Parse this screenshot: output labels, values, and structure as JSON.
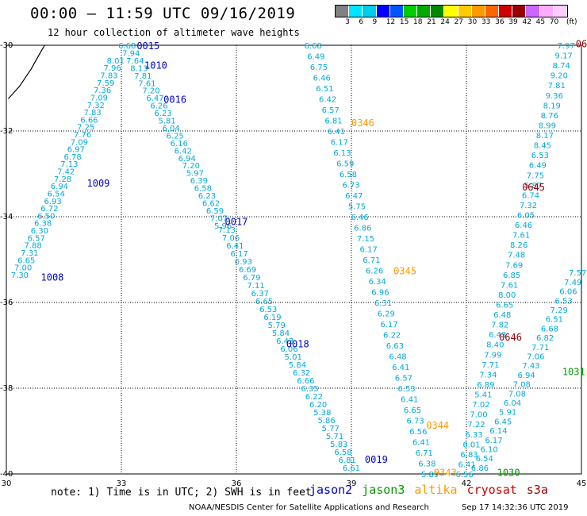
{
  "header": {
    "title": "00:00 – 11:59 UTC 09/16/2019",
    "subtitle": "12 hour collection of altimeter wave heights"
  },
  "colorbar": {
    "unit": "(ft)",
    "labels": [
      "3",
      "6",
      "9",
      "12",
      "15",
      "18",
      "21",
      "24",
      "27",
      "30",
      "33",
      "36",
      "39",
      "42",
      "45",
      "70"
    ],
    "colors": [
      "#808080",
      "#00e5ff",
      "#00ccee",
      "#0000ff",
      "#0055ff",
      "#00cc00",
      "#00aa00",
      "#008800",
      "#ffff00",
      "#ffcc00",
      "#ff9900",
      "#ff6600",
      "#cc0000",
      "#990000",
      "#cc66ff",
      "#ffaaff",
      "#ffccff"
    ]
  },
  "footer": {
    "note": "note:  1) Time is in UTC;  2) SWH is in feet",
    "credit": "NOAA/NESDIS Center for Satellite Applications and Research",
    "timestamp": "Sep 17 14:32:36 UTC 2019"
  },
  "legend": [
    {
      "name": "jason2",
      "color": "#0000cc"
    },
    {
      "name": "jason3",
      "color": "#009900"
    },
    {
      "name": "altika",
      "color": "#ff9900"
    },
    {
      "name": "cryosat",
      "color": "#cc0000"
    },
    {
      "name": "s3a",
      "color": "#990000"
    }
  ],
  "chart_data": {
    "type": "scatter",
    "xlim": [
      30,
      45
    ],
    "ylim": [
      -40,
      -30
    ],
    "xticks": [
      30,
      33,
      36,
      39,
      42,
      45
    ],
    "yticks": [
      -30,
      -32,
      -34,
      -36,
      -38,
      -40
    ],
    "grid": true,
    "satellite_colors": {
      "jason2": "#0000cc",
      "jason3": "#009900",
      "altika": "#ff9900",
      "cryosat": "#cc0000",
      "s3a": "#990000",
      "other": "#00aadd"
    },
    "time_labels": [
      {
        "text": "0015",
        "x": 33.4,
        "y": -30.0,
        "sat": "jason2"
      },
      {
        "text": "1010",
        "x": 33.6,
        "y": -30.45,
        "sat": "jason2"
      },
      {
        "text": "0016",
        "x": 34.1,
        "y": -31.25,
        "sat": "jason2"
      },
      {
        "text": "1009",
        "x": 32.1,
        "y": -33.2,
        "sat": "jason2"
      },
      {
        "text": "1008",
        "x": 30.9,
        "y": -35.4,
        "sat": "jason2"
      },
      {
        "text": "0017",
        "x": 35.7,
        "y": -34.1,
        "sat": "jason2"
      },
      {
        "text": "0018",
        "x": 37.3,
        "y": -36.95,
        "sat": "jason2"
      },
      {
        "text": "0019",
        "x": 39.35,
        "y": -39.65,
        "sat": "jason2"
      },
      {
        "text": "0346",
        "x": 39.0,
        "y": -31.8,
        "sat": "altika"
      },
      {
        "text": "0345",
        "x": 40.1,
        "y": -35.25,
        "sat": "altika"
      },
      {
        "text": "0344",
        "x": 40.95,
        "y": -38.85,
        "sat": "altika"
      },
      {
        "text": "0343",
        "x": 41.15,
        "y": -39.95,
        "sat": "altika"
      },
      {
        "text": "0645",
        "x": 43.45,
        "y": -33.3,
        "sat": "s3a"
      },
      {
        "text": "0646",
        "x": 42.85,
        "y": -36.8,
        "sat": "s3a"
      },
      {
        "text": "06",
        "x": 44.85,
        "y": -29.95,
        "sat": "s3a"
      },
      {
        "text": "1031",
        "x": 44.5,
        "y": -37.6,
        "sat": "jason3"
      },
      {
        "text": "1030",
        "x": 42.8,
        "y": -39.95,
        "sat": "jason3"
      }
    ],
    "tracks": [
      {
        "name": "track-1008-1009",
        "sat": "other",
        "start": [
          30.35,
          -35.35
        ],
        "end": [
          32.85,
          -30.35
        ],
        "values": [
          "7.30",
          "7.00",
          "6.65",
          "7.31",
          "7.88",
          "6.57",
          "6.30",
          "6.38",
          "6.50",
          "6.72",
          "6.93",
          "6.54",
          "6.94",
          "7.28",
          "7.42",
          "7.13",
          "6.78",
          "6.97",
          "7.09",
          "7.76",
          "7.25",
          "6.66",
          "7.83",
          "7.32",
          "7.09",
          "7.36",
          "7.59",
          "7.83",
          "7.96",
          "8.01"
        ]
      },
      {
        "name": "track-0015-0017",
        "sat": "other",
        "start": [
          33.15,
          -30.0
        ],
        "end": [
          35.65,
          -34.2
        ],
        "values": [
          "6.68",
          "7.94",
          "7.64",
          "8.13",
          "7.81",
          "7.61",
          "7.20",
          "6.47",
          "6.26",
          "6.23",
          "5.81",
          "6.04",
          "6.25",
          "6.16",
          "6.42",
          "6.94",
          "7.20",
          "5.97",
          "6.39",
          "6.58",
          "6.23",
          "6.62",
          "6.59",
          "7.07",
          "5.96"
        ]
      },
      {
        "name": "track-0017-0019",
        "sat": "other",
        "start": [
          35.75,
          -34.3
        ],
        "end": [
          39.0,
          -39.85
        ],
        "values": [
          "7.13",
          "7.06",
          "6.41",
          "6.17",
          "6.93",
          "6.69",
          "6.79",
          "7.11",
          "6.37",
          "6.65",
          "6.53",
          "6.19",
          "5.79",
          "5.84",
          "6.43",
          "6.06",
          "5.01",
          "5.84",
          "6.32",
          "6.66",
          "6.35",
          "6.22",
          "6.20",
          "5.38",
          "5.86",
          "5.77",
          "5.71",
          "5.83",
          "6.58",
          "6.81",
          "6.61"
        ]
      },
      {
        "name": "track-0346-0343",
        "sat": "other",
        "start": [
          38.0,
          -30.0
        ],
        "end": [
          41.05,
          -40.0
        ],
        "values": [
          "6.68",
          "6.49",
          "6.75",
          "6.46",
          "6.51",
          "6.42",
          "6.57",
          "6.81",
          "6.41",
          "6.17",
          "6.13",
          "6.59",
          "6.58",
          "6.73",
          "6.47",
          "5.75",
          "6.46",
          "6.86",
          "7.15",
          "6.17",
          "6.71",
          "6.26",
          "6.34",
          "6.96",
          "6.31",
          "6.29",
          "6.17",
          "6.22",
          "6.63",
          "6.48",
          "6.41",
          "6.57",
          "6.53",
          "6.41",
          "6.65",
          "6.73",
          "6.56",
          "6.41",
          "6.71",
          "6.38",
          "5.89"
        ]
      },
      {
        "name": "track-s3a-descending",
        "sat": "other",
        "start": [
          44.6,
          -30.0
        ],
        "end": [
          41.95,
          -40.0
        ],
        "values": [
          "7.97",
          "9.17",
          "8.74",
          "9.20",
          "7.81",
          "9.36",
          "8.19",
          "8.76",
          "8.99",
          "8.17",
          "8.45",
          "6.53",
          "6.49",
          "7.75",
          "5.87",
          "6.74",
          "7.32",
          "6.05",
          "6.46",
          "7.61",
          "8.26",
          "7.48",
          "7.69",
          "6.85",
          "7.61",
          "8.00",
          "6.65",
          "6.48",
          "7.82",
          "6.43",
          "8.40",
          "7.99",
          "7.71",
          "7.34",
          "6.89",
          "5.41",
          "7.02",
          "7.00",
          "7.22",
          "6.33",
          "6.01",
          "6.83",
          "6.41",
          "6.56"
        ]
      },
      {
        "name": "track-1030-1031",
        "sat": "other",
        "start": [
          42.35,
          -39.85
        ],
        "end": [
          44.9,
          -35.3
        ],
        "values": [
          "6.86",
          "6.54",
          "6.10",
          "6.17",
          "6.14",
          "6.45",
          "5.91",
          "6.04",
          "7.08",
          "7.08",
          "6.94",
          "7.43",
          "7.06",
          "7.71",
          "6.82",
          "6.68",
          "6.51",
          "7.29",
          "6.53",
          "6.06",
          "7.49",
          "7.57"
        ]
      }
    ],
    "curve": [
      [
        30.05,
        -31.25
      ],
      [
        30.35,
        -30.95
      ],
      [
        30.65,
        -30.55
      ],
      [
        30.9,
        -30.15
      ],
      [
        31.0,
        -30.0
      ]
    ]
  }
}
